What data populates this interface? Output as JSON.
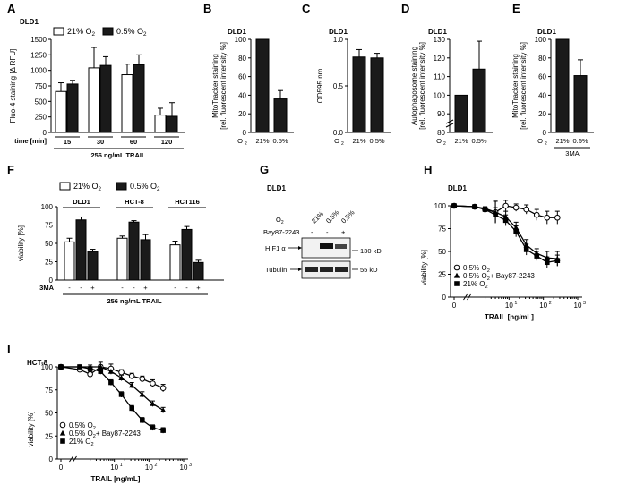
{
  "figure": {
    "panels": [
      "A",
      "B",
      "C",
      "D",
      "E",
      "F",
      "G",
      "H",
      "I"
    ],
    "hypoxia_label": "0.5% O",
    "normoxia_label": "21% O",
    "subscript_two": "2"
  },
  "blot": {
    "cell_line": "DLD1",
    "o2_label": "O",
    "lane_labels": [
      "21%",
      "0.5%",
      "0.5%"
    ],
    "treatment_label": "Bay87-2243",
    "treatment_marks": [
      "-",
      "-",
      "+"
    ],
    "band1_label": "HIF1 α",
    "band1_size": "130 kD",
    "band2_label": "Tubulin",
    "band2_size": "55 kD"
  },
  "colors": {
    "black_bar": "#1a1a1a",
    "white_bar": "#ffffff",
    "axis": "#000000"
  },
  "chart_data": [
    {
      "panel": "A",
      "type": "bar",
      "title": "DLD1",
      "ylabel": "Fluo-4 staining [Δ RFU]",
      "ylim": [
        0,
        1500
      ],
      "yticks": [
        0,
        250,
        500,
        750,
        1000,
        1250,
        1500
      ],
      "xlabel": "time [min]",
      "categories": [
        "15",
        "30",
        "60",
        "120"
      ],
      "group_label": "256 ng/mL TRAIL",
      "legend": [
        "21% O2",
        "0.5% O2"
      ],
      "series": [
        {
          "name": "21% O2",
          "values": [
            660,
            1040,
            930,
            280
          ],
          "errors": [
            140,
            330,
            170,
            110
          ]
        },
        {
          "name": "0.5% O2",
          "values": [
            780,
            1080,
            1090,
            260
          ],
          "errors": [
            60,
            140,
            160,
            220
          ]
        }
      ]
    },
    {
      "panel": "B",
      "type": "bar",
      "title": "DLD1",
      "ylabel": "MitoTracker staining [rel. fluorescent intensity %]",
      "ylim": [
        0,
        100
      ],
      "yticks": [
        0,
        20,
        40,
        60,
        80,
        100
      ],
      "categories": [
        "21%",
        "0.5%"
      ],
      "row_label": "O2",
      "values": [
        100,
        36
      ],
      "errors": [
        0,
        9
      ]
    },
    {
      "panel": "C",
      "type": "bar",
      "title": "DLD1",
      "ylabel": "OD595 nm",
      "ylim": [
        0,
        1.0
      ],
      "yticks": [
        0,
        0.5,
        1.0
      ],
      "categories": [
        "21%",
        "0.5%"
      ],
      "row_label": "O2",
      "values": [
        0.81,
        0.8
      ],
      "errors": [
        0.08,
        0.05
      ]
    },
    {
      "panel": "D",
      "type": "bar",
      "title": "DLD1",
      "ylabel": "Autophagosome staining [rel. fluorescent intensity %]",
      "ylim": [
        80,
        130
      ],
      "yticks": [
        80,
        90,
        100,
        110,
        120,
        130
      ],
      "axis_break": true,
      "categories": [
        "21%",
        "0.5%"
      ],
      "row_label": "O2",
      "values": [
        100,
        114
      ],
      "errors": [
        0,
        15
      ]
    },
    {
      "panel": "E",
      "type": "bar",
      "title": "DLD1",
      "ylabel": "MitoTracker staining [rel. fluorescent intensity %]",
      "ylim": [
        0,
        100
      ],
      "yticks": [
        0,
        20,
        40,
        60,
        80,
        100
      ],
      "categories": [
        "21%",
        "0.5%"
      ],
      "row_label": "O2",
      "group_label": "3MA",
      "values": [
        100,
        61
      ],
      "errors": [
        0,
        17
      ]
    },
    {
      "panel": "F",
      "type": "bar",
      "ylabel": "viability [%]",
      "ylim": [
        0,
        100
      ],
      "yticks": [
        0,
        25,
        50,
        75,
        100
      ],
      "groups": [
        "DLD1",
        "HCT-8",
        "HCT116"
      ],
      "bar_conditions": [
        "21% O2",
        "0.5% O2",
        "0.5% O2"
      ],
      "row_label": "3MA",
      "treatment_marks": [
        "-",
        "-",
        "+"
      ],
      "group_label": "256 ng/mL TRAIL",
      "legend": [
        "21% O2",
        "0.5% O2"
      ],
      "values": [
        [
          52,
          82,
          39
        ],
        [
          57,
          79,
          55
        ],
        [
          48,
          69,
          24
        ]
      ],
      "errors": [
        [
          5,
          4,
          3
        ],
        [
          3,
          2,
          7
        ],
        [
          5,
          4,
          3
        ]
      ]
    },
    {
      "panel": "H",
      "type": "line",
      "title": "DLD1",
      "xscale": "log",
      "ylabel": "viability [%]",
      "xlabel": "TRAIL [ng/mL]",
      "ylim": [
        0,
        100
      ],
      "yticks": [
        0,
        25,
        50,
        75,
        100
      ],
      "xtick_labels": [
        "0",
        "10",
        "10",
        "10"
      ],
      "xtick_exponents": [
        "",
        "1",
        "2",
        "3"
      ],
      "x": [
        0,
        1,
        2,
        4,
        8,
        16,
        32,
        64,
        128,
        256
      ],
      "legend": [
        "0.5% O2",
        "0.5% O2+ Bay87-2243",
        "21% O2"
      ],
      "series": [
        {
          "name": "0.5% O2",
          "marker": "circle-open",
          "values": [
            100,
            99,
            96,
            93,
            100,
            98,
            96,
            90,
            87,
            87
          ],
          "errors": [
            1,
            1,
            3,
            12,
            6,
            4,
            5,
            6,
            7,
            7
          ]
        },
        {
          "name": "0.5% O2+ Bay87-2243",
          "marker": "triangle",
          "values": [
            100,
            99,
            97,
            93,
            88,
            76,
            57,
            48,
            43,
            42
          ],
          "errors": [
            1,
            1,
            2,
            12,
            6,
            6,
            6,
            5,
            7,
            8
          ]
        },
        {
          "name": "21% O2",
          "marker": "square",
          "values": [
            100,
            99,
            96,
            90,
            84,
            72,
            52,
            45,
            38,
            40
          ],
          "errors": [
            1,
            1,
            2,
            8,
            6,
            6,
            6,
            5,
            6,
            6
          ]
        }
      ]
    },
    {
      "panel": "I",
      "type": "line",
      "title": "HCT-8",
      "xscale": "log",
      "ylabel": "viability [%]",
      "xlabel": "TRAIL [ng/mL]",
      "ylim": [
        0,
        100
      ],
      "yticks": [
        0,
        25,
        50,
        75,
        100
      ],
      "xtick_labels": [
        "0",
        "10",
        "10",
        "10"
      ],
      "xtick_exponents": [
        "",
        "1",
        "2",
        "3"
      ],
      "x": [
        0,
        1,
        2,
        4,
        8,
        16,
        32,
        64,
        128,
        256
      ],
      "legend": [
        "0.5% O2",
        "0.5% O2+ Bay87-2243",
        "21% O2"
      ],
      "series": [
        {
          "name": "0.5% O2",
          "marker": "circle-open",
          "values": [
            100,
            97,
            92,
            100,
            98,
            94,
            90,
            87,
            82,
            77
          ],
          "errors": [
            2,
            3,
            3,
            5,
            5,
            3,
            3,
            3,
            4,
            4
          ]
        },
        {
          "name": "0.5% O2+ Bay87-2243",
          "marker": "triangle",
          "values": [
            100,
            100,
            100,
            100,
            95,
            88,
            80,
            70,
            60,
            53
          ],
          "errors": [
            2,
            2,
            2,
            2,
            3,
            3,
            3,
            3,
            3,
            3
          ]
        },
        {
          "name": "21% O2",
          "marker": "square",
          "values": [
            100,
            100,
            98,
            95,
            83,
            70,
            55,
            42,
            34,
            31
          ],
          "errors": [
            2,
            2,
            2,
            3,
            3,
            3,
            3,
            3,
            3,
            3
          ]
        }
      ]
    }
  ]
}
